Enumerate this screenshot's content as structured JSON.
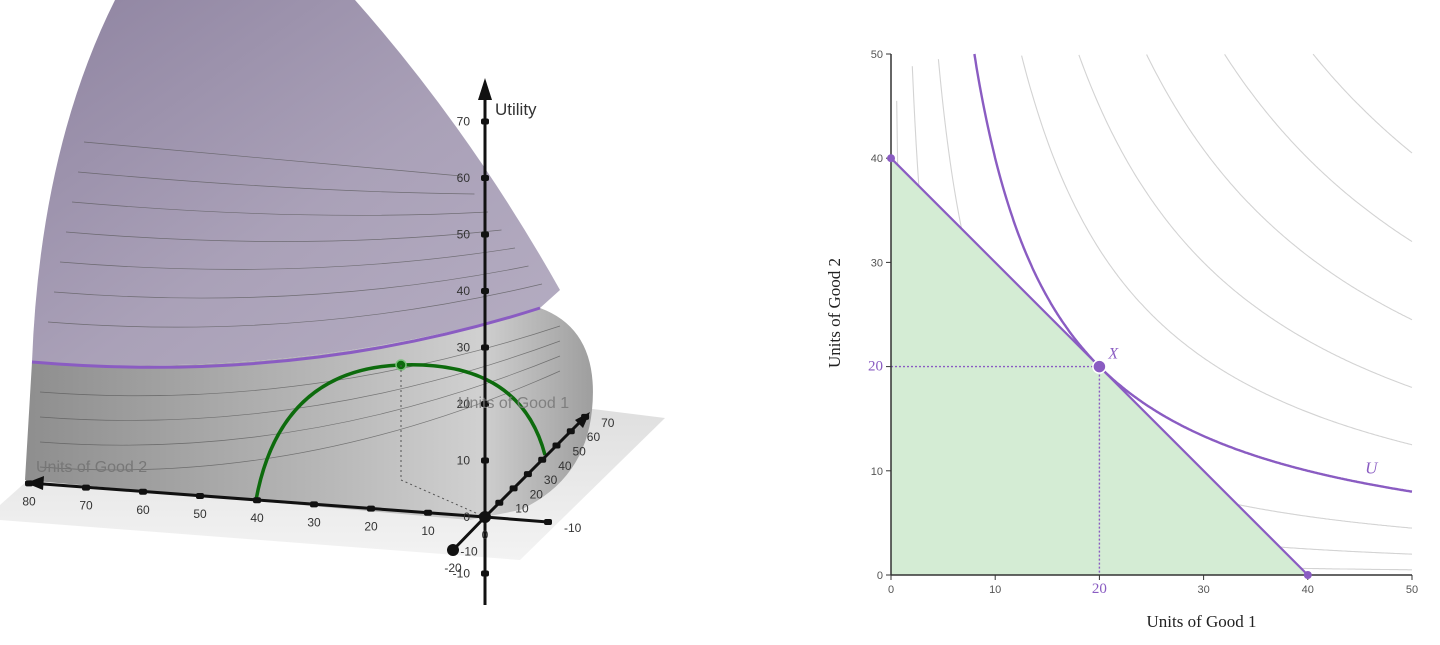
{
  "chart_data": [
    {
      "type": "surface3d",
      "axes": {
        "utility_label": "Utility",
        "good1_label": "Units of Good 1",
        "good2_label": "Units of Good 2"
      },
      "utility_ticks": [
        70,
        60,
        50,
        40,
        30,
        20,
        10,
        0,
        -10
      ],
      "good1_ticks": [
        -10,
        10,
        20,
        30,
        40,
        50,
        60,
        70
      ],
      "good2_ticks": [
        80,
        70,
        60,
        50,
        40,
        30,
        20,
        10,
        0,
        -10,
        -20
      ],
      "colors": {
        "surface": "#a59bb3",
        "surface_lower": "#9a9a9a",
        "indifference": "#8a5cc2",
        "budget": "#0d6b0d",
        "point": "#0d6b0d"
      }
    },
    {
      "type": "line",
      "xlabel": "Units of Good 1",
      "ylabel": "Units of Good 2",
      "xlim": [
        0,
        50
      ],
      "ylim": [
        0,
        50
      ],
      "x_ticks": [
        0,
        10,
        20,
        30,
        40,
        50
      ],
      "y_ticks": [
        0,
        10,
        20,
        30,
        40,
        50
      ],
      "budget_line": {
        "x_intercept": 40,
        "y_intercept": 40
      },
      "optimal_point": {
        "label": "X",
        "x": 20,
        "y": 20
      },
      "highlight_x_tick": 20,
      "highlight_y_tick": 20,
      "indifference_curve": {
        "label": "U",
        "xy_product": 400
      },
      "background_curves": [
        25,
        100,
        225,
        625,
        900,
        1225,
        1600,
        2025,
        2500
      ],
      "colors": {
        "budget_fill": "#d4ecd4",
        "accent": "#8a5cc2",
        "grid_curves": "#d3d3d3",
        "axis": "#333333"
      }
    }
  ]
}
